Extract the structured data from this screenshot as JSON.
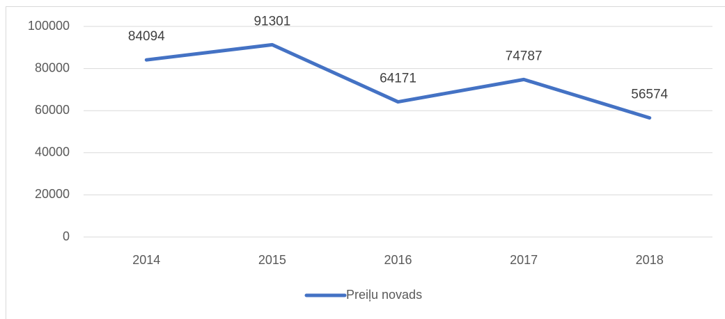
{
  "chart_data": {
    "type": "line",
    "categories": [
      "2014",
      "2015",
      "2016",
      "2017",
      "2018"
    ],
    "series": [
      {
        "name": "Preiļu novads",
        "color": "#4472c4",
        "values": [
          84094,
          91301,
          64171,
          74787,
          56574
        ]
      }
    ],
    "ylim": [
      0,
      100000
    ],
    "yticks": [
      0,
      20000,
      40000,
      60000,
      80000,
      100000
    ],
    "grid": true,
    "legend": "bottom"
  }
}
